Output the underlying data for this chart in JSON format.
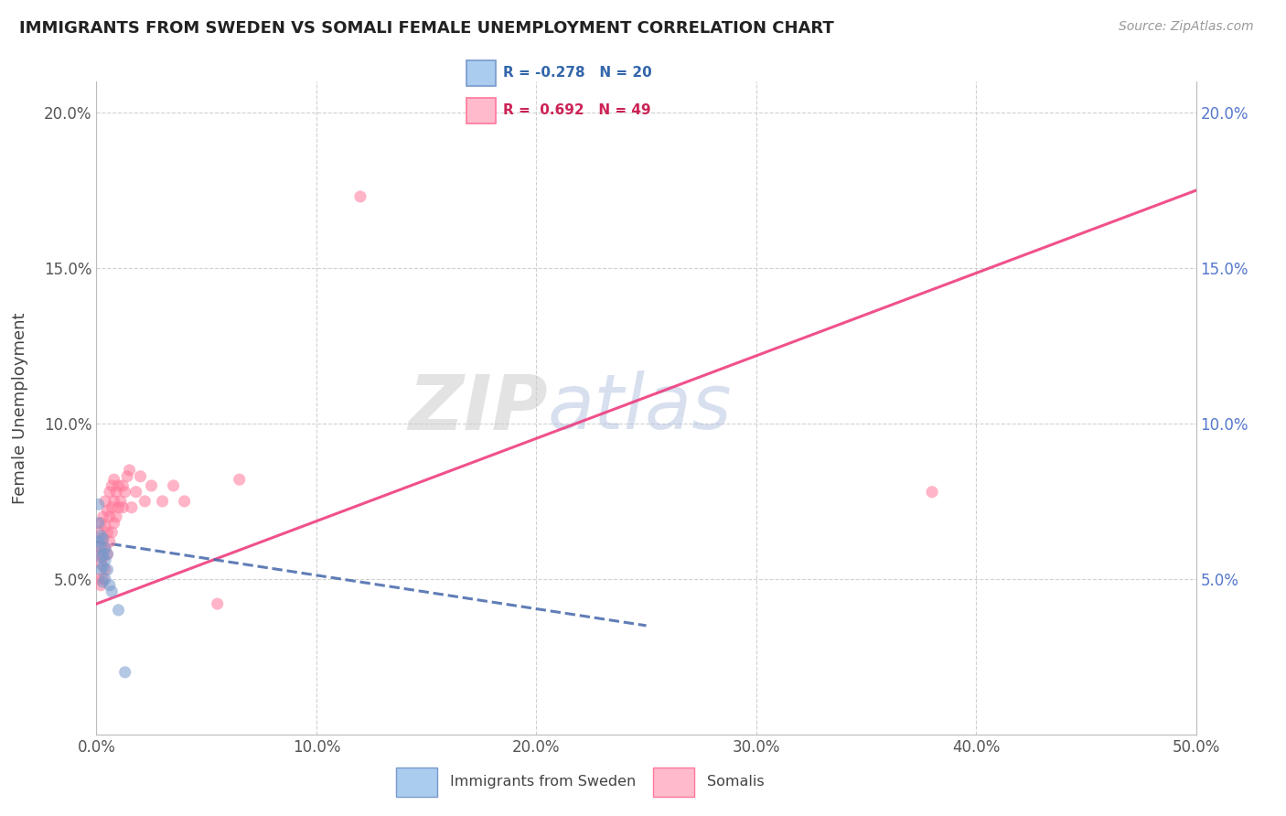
{
  "title": "IMMIGRANTS FROM SWEDEN VS SOMALI FEMALE UNEMPLOYMENT CORRELATION CHART",
  "source": "Source: ZipAtlas.com",
  "ylabel": "Female Unemployment",
  "watermark_zip": "ZIP",
  "watermark_atlas": "atlas",
  "legend_sweden": "Immigrants from Sweden",
  "legend_somali": "Somalis",
  "r_sweden": -0.278,
  "n_sweden": 20,
  "r_somali": 0.692,
  "n_somali": 49,
  "sweden_color": "#7799cc",
  "somali_color": "#ff7799",
  "sweden_line_color": "#4466aa",
  "somali_line_color": "#ee3377",
  "sweden_x": [
    0.001,
    0.001,
    0.001,
    0.002,
    0.002,
    0.002,
    0.002,
    0.003,
    0.003,
    0.003,
    0.003,
    0.004,
    0.004,
    0.004,
    0.005,
    0.005,
    0.006,
    0.007,
    0.01,
    0.013
  ],
  "sweden_y": [
    0.074,
    0.068,
    0.062,
    0.064,
    0.06,
    0.057,
    0.053,
    0.063,
    0.058,
    0.054,
    0.049,
    0.06,
    0.056,
    0.05,
    0.058,
    0.053,
    0.048,
    0.046,
    0.04,
    0.02
  ],
  "somali_x": [
    0.001,
    0.001,
    0.001,
    0.002,
    0.002,
    0.002,
    0.002,
    0.003,
    0.003,
    0.003,
    0.003,
    0.004,
    0.004,
    0.004,
    0.004,
    0.005,
    0.005,
    0.005,
    0.006,
    0.006,
    0.006,
    0.007,
    0.007,
    0.007,
    0.008,
    0.008,
    0.008,
    0.009,
    0.009,
    0.01,
    0.01,
    0.011,
    0.012,
    0.012,
    0.013,
    0.014,
    0.015,
    0.016,
    0.018,
    0.02,
    0.022,
    0.025,
    0.03,
    0.035,
    0.04,
    0.055,
    0.065,
    0.12,
    0.38
  ],
  "somali_y": [
    0.065,
    0.058,
    0.05,
    0.068,
    0.06,
    0.055,
    0.048,
    0.07,
    0.063,
    0.057,
    0.05,
    0.075,
    0.067,
    0.06,
    0.053,
    0.072,
    0.065,
    0.058,
    0.078,
    0.07,
    0.062,
    0.08,
    0.073,
    0.065,
    0.082,
    0.075,
    0.068,
    0.078,
    0.07,
    0.08,
    0.073,
    0.075,
    0.08,
    0.073,
    0.078,
    0.083,
    0.085,
    0.073,
    0.078,
    0.083,
    0.075,
    0.08,
    0.075,
    0.08,
    0.075,
    0.042,
    0.082,
    0.173,
    0.078
  ],
  "somali_line_start_x": 0.0,
  "somali_line_start_y": 0.042,
  "somali_line_end_x": 0.5,
  "somali_line_end_y": 0.175,
  "sweden_line_start_x": 0.0,
  "sweden_line_start_y": 0.062,
  "sweden_line_end_x": 0.25,
  "sweden_line_end_y": 0.035,
  "xlim": [
    0.0,
    0.5
  ],
  "ylim": [
    0.0,
    0.21
  ],
  "yticks": [
    0.05,
    0.1,
    0.15,
    0.2
  ],
  "ytick_labels": [
    "5.0%",
    "10.0%",
    "15.0%",
    "20.0%"
  ],
  "xticks": [
    0.0,
    0.1,
    0.2,
    0.3,
    0.4,
    0.5
  ],
  "xtick_labels": [
    "0.0%",
    "10.0%",
    "20.0%",
    "30.0%",
    "40.0%",
    "50.0%"
  ],
  "background_color": "#ffffff",
  "grid_color": "#cccccc"
}
